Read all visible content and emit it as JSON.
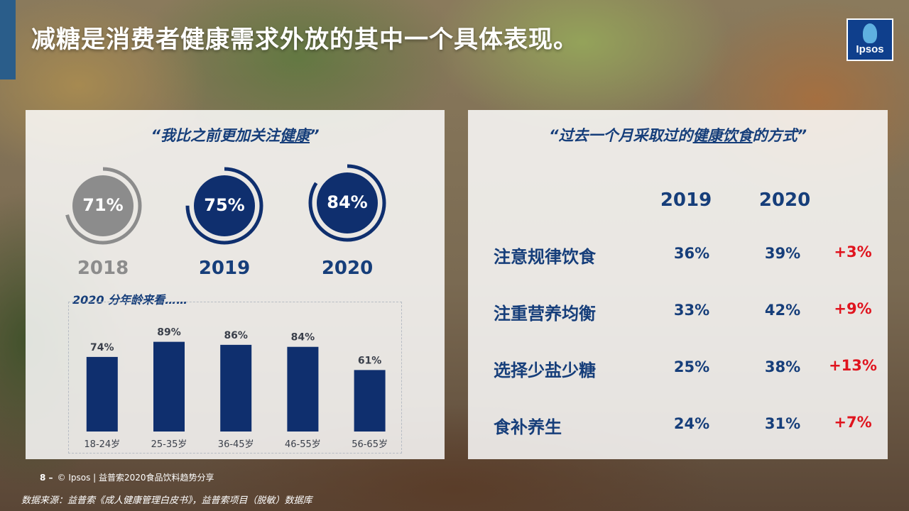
{
  "slide": {
    "title": "减糖是消费者健康需求外放的其中一个具体表现。",
    "logo_text": "Ipsos"
  },
  "left_panel": {
    "heading_prefix": "“我比之前更加关注",
    "heading_emph": "健康",
    "heading_suffix": "”",
    "rings": [
      {
        "year": "2018",
        "value_label": "71%",
        "value": 71,
        "color": "#8c8c8c"
      },
      {
        "year": "2019",
        "value_label": "75%",
        "value": 75,
        "color": "#0f2f6e"
      },
      {
        "year": "2020",
        "value_label": "84%",
        "value": 84,
        "color": "#0f2f6e"
      }
    ],
    "sub_label": "2020 分年龄来看……"
  },
  "chart_data": {
    "type": "bar",
    "categories": [
      "18-24岁",
      "25-35岁",
      "36-45岁",
      "46-55岁",
      "56-65岁"
    ],
    "values": [
      74,
      89,
      86,
      84,
      61
    ],
    "value_labels": [
      "74%",
      "89%",
      "86%",
      "84%",
      "61%"
    ],
    "ylim": [
      0,
      100
    ],
    "bar_color": "#0f2f6e"
  },
  "right_panel": {
    "heading_prefix": "“过去一个月采取过的",
    "heading_emph1": "健康饮食",
    "heading_mid": "的方式",
    "heading_suffix": "”",
    "years": [
      "2019",
      "2020"
    ],
    "rows": [
      {
        "label": "注意规律饮食",
        "v2019": "36%",
        "v2020": "39%",
        "change": "+3%"
      },
      {
        "label": "注重营养均衡",
        "v2019": "33%",
        "v2020": "42%",
        "change": "+9%"
      },
      {
        "label": "选择少盐少糖",
        "v2019": "25%",
        "v2020": "38%",
        "change": "+13%"
      },
      {
        "label": "食补养生",
        "v2019": "24%",
        "v2020": "31%",
        "change": "+7%"
      }
    ]
  },
  "footer": {
    "page": "8 –",
    "text": "© Ipsos | 益普索2020食品饮料趋势分享",
    "source": "数据来源：益普索《成人健康管理白皮书》，益普索项目（脱敏）数据库"
  }
}
